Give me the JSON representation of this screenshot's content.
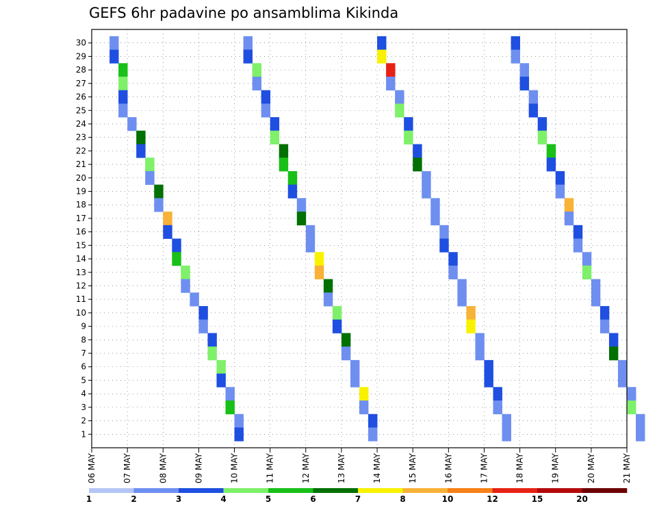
{
  "chart_data": {
    "type": "heatmap",
    "title": "GEFS 6hr padavine po ansamblima Kikinda",
    "xlabel": "",
    "ylabel": "",
    "grid": true,
    "y_categories": [
      "1",
      "2",
      "3",
      "4",
      "5",
      "6",
      "7",
      "8",
      "9",
      "10",
      "11",
      "12",
      "13",
      "14",
      "15",
      "16",
      "17",
      "18",
      "19",
      "20",
      "21",
      "22",
      "23",
      "24",
      "25",
      "26",
      "27",
      "28",
      "29",
      "30"
    ],
    "x_tick_labels": [
      "06 MAY",
      "07 MAY",
      "08 MAY",
      "09 MAY",
      "10 MAY",
      "11 MAY",
      "12 MAY",
      "13 MAY",
      "14 MAY",
      "15 MAY",
      "16 MAY",
      "17 MAY",
      "18 MAY",
      "19 MAY",
      "20 MAY",
      "21 MAY"
    ],
    "x_steps_per_day": 4,
    "value_unit": "6hr precipitation (color class)",
    "legend": {
      "position": "bottom",
      "labels": [
        "1",
        "2",
        "3",
        "4",
        "5",
        "6",
        "7",
        "8",
        "10",
        "12",
        "15",
        "20"
      ],
      "colors": [
        "#b4c6f6",
        "#6e8ff0",
        "#1f4fe0",
        "#7ef06a",
        "#18c018",
        "#037003",
        "#f8f200",
        "#f8b238",
        "#f88018",
        "#e62214",
        "#b40a0a",
        "#6c0000"
      ]
    },
    "cells": [
      [
        2,
        30,
        1
      ],
      [
        2,
        29,
        2
      ],
      [
        3,
        28,
        4
      ],
      [
        3,
        27,
        3
      ],
      [
        3,
        26,
        2
      ],
      [
        3,
        25,
        1
      ],
      [
        4,
        24,
        1
      ],
      [
        5,
        23,
        5
      ],
      [
        5,
        22,
        2
      ],
      [
        6,
        21,
        3
      ],
      [
        6,
        20,
        1
      ],
      [
        7,
        19,
        5
      ],
      [
        7,
        18,
        1
      ],
      [
        8,
        17,
        7
      ],
      [
        8,
        16,
        2
      ],
      [
        9,
        15,
        2
      ],
      [
        9,
        14,
        4
      ],
      [
        10,
        13,
        3
      ],
      [
        10,
        12,
        1
      ],
      [
        11,
        11,
        1
      ],
      [
        12,
        10,
        2
      ],
      [
        12,
        9,
        1
      ],
      [
        13,
        8,
        2
      ],
      [
        13,
        7,
        3
      ],
      [
        14,
        6,
        3
      ],
      [
        14,
        5,
        2
      ],
      [
        15,
        4,
        1
      ],
      [
        15,
        3,
        4
      ],
      [
        16,
        2,
        1
      ],
      [
        16,
        1,
        2
      ],
      [
        17,
        30,
        1
      ],
      [
        17,
        29,
        2
      ],
      [
        18,
        28,
        3
      ],
      [
        18,
        27,
        1
      ],
      [
        19,
        26,
        2
      ],
      [
        19,
        25,
        1
      ],
      [
        20,
        24,
        2
      ],
      [
        20,
        23,
        3
      ],
      [
        21,
        22,
        5
      ],
      [
        21,
        21,
        4
      ],
      [
        22,
        20,
        4
      ],
      [
        22,
        19,
        2
      ],
      [
        23,
        18,
        1
      ],
      [
        23,
        17,
        5
      ],
      [
        24,
        16,
        1
      ],
      [
        24,
        15,
        1
      ],
      [
        25,
        14,
        6
      ],
      [
        25,
        13,
        7
      ],
      [
        26,
        12,
        5
      ],
      [
        26,
        11,
        1
      ],
      [
        27,
        10,
        3
      ],
      [
        27,
        9,
        2
      ],
      [
        28,
        8,
        5
      ],
      [
        28,
        7,
        1
      ],
      [
        29,
        6,
        1
      ],
      [
        29,
        5,
        1
      ],
      [
        30,
        4,
        6
      ],
      [
        30,
        3,
        1
      ],
      [
        31,
        2,
        2
      ],
      [
        31,
        1,
        1
      ],
      [
        32,
        30,
        2
      ],
      [
        32,
        29,
        6
      ],
      [
        33,
        28,
        9
      ],
      [
        33,
        27,
        1
      ],
      [
        34,
        26,
        1
      ],
      [
        34,
        25,
        3
      ],
      [
        35,
        24,
        2
      ],
      [
        35,
        23,
        3
      ],
      [
        36,
        22,
        2
      ],
      [
        36,
        21,
        5
      ],
      [
        37,
        20,
        1
      ],
      [
        37,
        19,
        1
      ],
      [
        38,
        18,
        1
      ],
      [
        38,
        17,
        1
      ],
      [
        39,
        16,
        1
      ],
      [
        39,
        15,
        2
      ],
      [
        40,
        14,
        2
      ],
      [
        40,
        13,
        1
      ],
      [
        41,
        12,
        1
      ],
      [
        41,
        11,
        1
      ],
      [
        42,
        10,
        7
      ],
      [
        42,
        9,
        6
      ],
      [
        43,
        8,
        1
      ],
      [
        43,
        7,
        1
      ],
      [
        44,
        6,
        2
      ],
      [
        44,
        5,
        2
      ],
      [
        45,
        4,
        2
      ],
      [
        45,
        3,
        1
      ],
      [
        46,
        2,
        1
      ],
      [
        46,
        1,
        1
      ],
      [
        47,
        30,
        2
      ],
      [
        47,
        29,
        1
      ],
      [
        48,
        28,
        1
      ],
      [
        48,
        27,
        2
      ],
      [
        49,
        26,
        1
      ],
      [
        49,
        25,
        2
      ],
      [
        50,
        24,
        2
      ],
      [
        50,
        23,
        3
      ],
      [
        51,
        22,
        4
      ],
      [
        51,
        21,
        2
      ],
      [
        52,
        20,
        2
      ],
      [
        52,
        19,
        1
      ],
      [
        53,
        18,
        7
      ],
      [
        53,
        17,
        1
      ],
      [
        54,
        16,
        2
      ],
      [
        54,
        15,
        1
      ],
      [
        55,
        14,
        1
      ],
      [
        55,
        13,
        3
      ],
      [
        56,
        12,
        1
      ],
      [
        56,
        11,
        1
      ],
      [
        57,
        10,
        2
      ],
      [
        57,
        9,
        1
      ],
      [
        58,
        8,
        2
      ],
      [
        58,
        7,
        5
      ],
      [
        59,
        6,
        1
      ],
      [
        59,
        5,
        1
      ],
      [
        60,
        4,
        1
      ],
      [
        60,
        3,
        3
      ],
      [
        61,
        2,
        1
      ],
      [
        61,
        1,
        1
      ]
    ]
  }
}
